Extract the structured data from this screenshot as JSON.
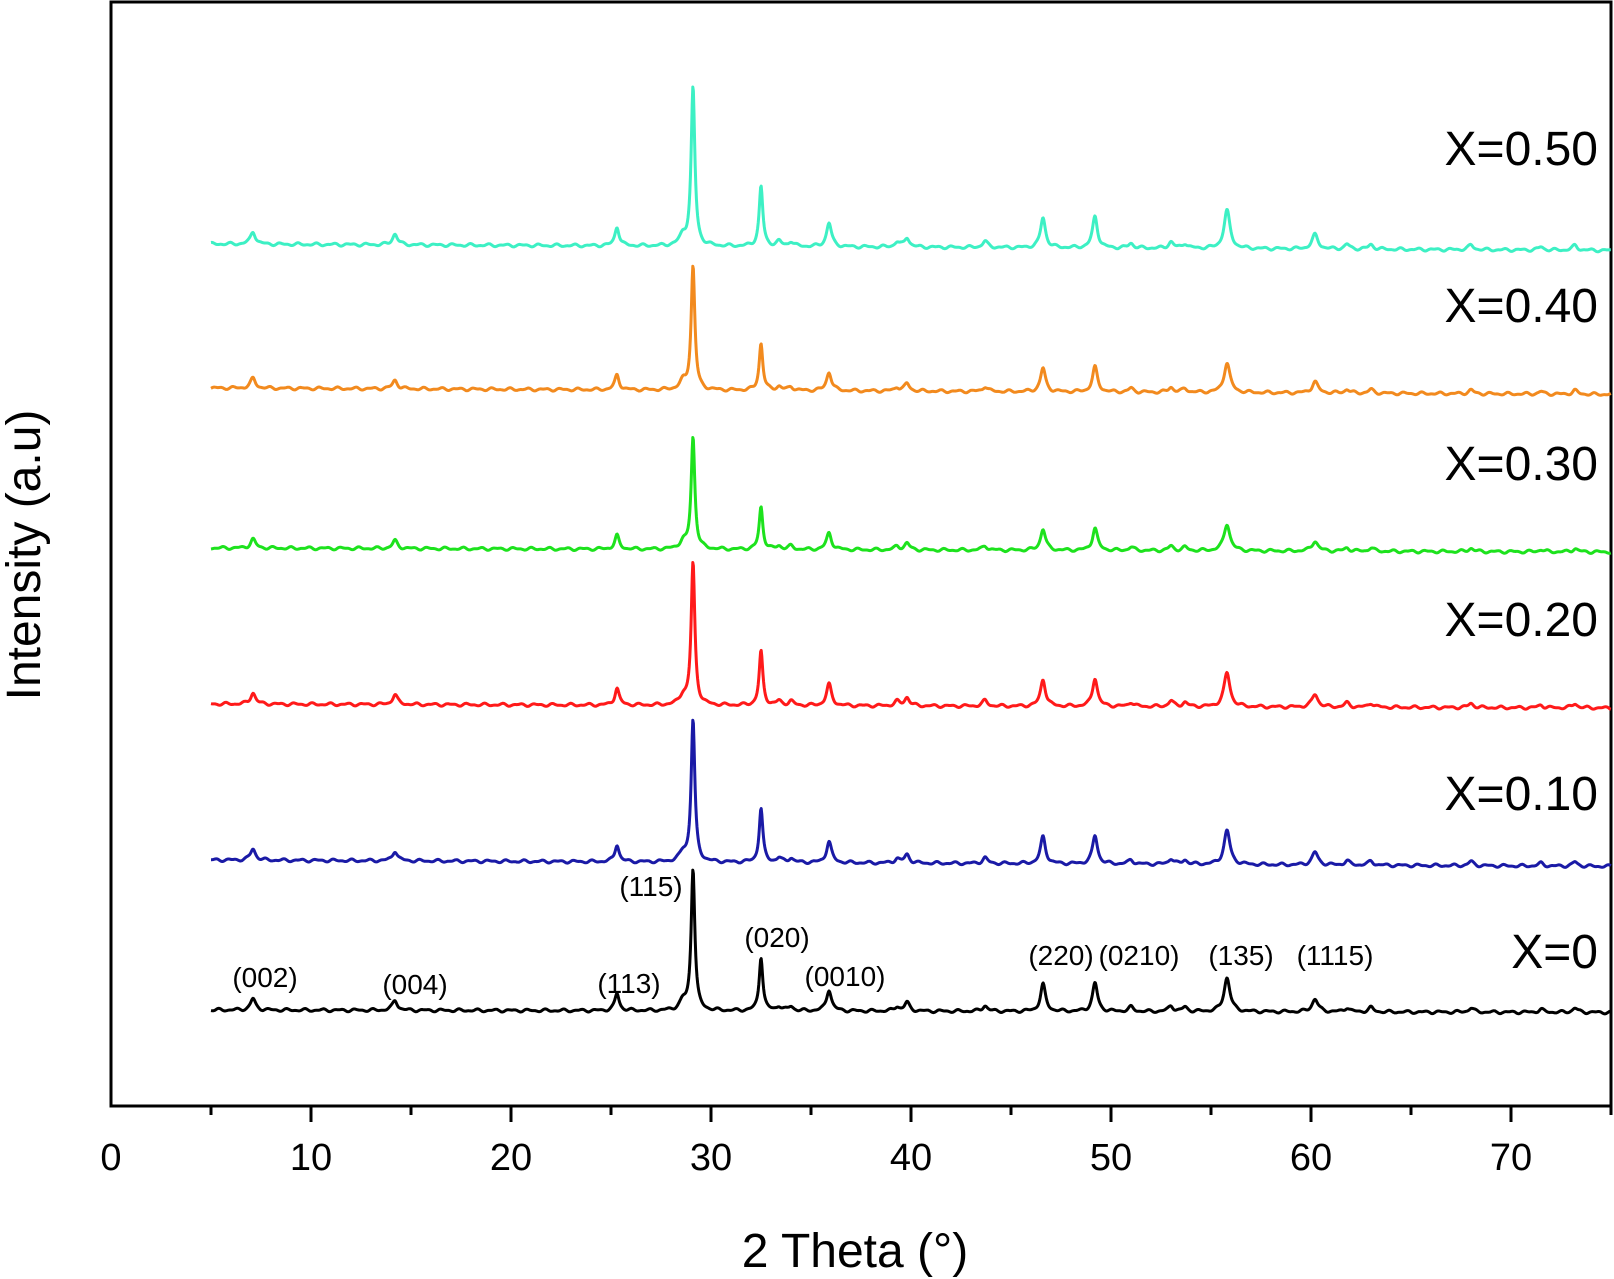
{
  "chart_data": {
    "type": "line",
    "title": "",
    "xlabel": "2 Theta (°)",
    "ylabel": "Intensity (a.u)",
    "xlim": [
      0,
      75
    ],
    "xticks": [
      0,
      10,
      20,
      30,
      40,
      50,
      60,
      70
    ],
    "grid": false,
    "legend": "labels-right-of-traces",
    "peaks": [
      {
        "x": 7.1,
        "h": 8,
        "w": 0.15
      },
      {
        "x": 14.2,
        "h": 7,
        "w": 0.15
      },
      {
        "x": 25.3,
        "h": 12,
        "w": 0.13
      },
      {
        "x": 28.6,
        "h": 6,
        "w": 0.2
      },
      {
        "x": 29.1,
        "h": 100,
        "w": 0.11
      },
      {
        "x": 32.5,
        "h": 38,
        "w": 0.11
      },
      {
        "x": 33.4,
        "h": 3,
        "w": 0.15
      },
      {
        "x": 34.0,
        "h": 3,
        "w": 0.15
      },
      {
        "x": 35.9,
        "h": 15,
        "w": 0.15
      },
      {
        "x": 39.3,
        "h": 3,
        "w": 0.15
      },
      {
        "x": 39.8,
        "h": 6,
        "w": 0.15
      },
      {
        "x": 43.7,
        "h": 4,
        "w": 0.15
      },
      {
        "x": 46.6,
        "h": 19,
        "w": 0.15
      },
      {
        "x": 49.2,
        "h": 20,
        "w": 0.15
      },
      {
        "x": 51.0,
        "h": 3,
        "w": 0.15
      },
      {
        "x": 53.0,
        "h": 4,
        "w": 0.15
      },
      {
        "x": 53.7,
        "h": 3,
        "w": 0.15
      },
      {
        "x": 55.8,
        "h": 24,
        "w": 0.18
      },
      {
        "x": 60.2,
        "h": 9,
        "w": 0.18
      },
      {
        "x": 61.8,
        "h": 3,
        "w": 0.15
      },
      {
        "x": 63.0,
        "h": 3,
        "w": 0.15
      },
      {
        "x": 68.0,
        "h": 3,
        "w": 0.15
      },
      {
        "x": 71.5,
        "h": 2,
        "w": 0.15
      },
      {
        "x": 73.2,
        "h": 3,
        "w": 0.15
      }
    ],
    "series": [
      {
        "name": "X=0",
        "color": "#000000",
        "baseline": 0,
        "drift": -0.6,
        "max": 35.5
      },
      {
        "name": "X=0.10",
        "color": "#1a1aa6",
        "baseline": 37.5,
        "drift": -1.6,
        "max": 35.5
      },
      {
        "name": "X=0.20",
        "color": "#ff1a1a",
        "baseline": 76.5,
        "drift": -1.0,
        "max": 35.5
      },
      {
        "name": "X=0.30",
        "color": "#1de21d",
        "baseline": 115.5,
        "drift": -1.0,
        "max": 28.0
      },
      {
        "name": "X=0.40",
        "color": "#f28a1e",
        "baseline": 155.5,
        "drift": -1.6,
        "max": 31.0
      },
      {
        "name": "X=0.50",
        "color": "#3df0c4",
        "baseline": 191.5,
        "drift": -1.6,
        "max": 39.5
      }
    ],
    "peak_labels": [
      {
        "text": "(002)",
        "x": 7.7
      },
      {
        "text": "(004)",
        "x": 15.2
      },
      {
        "text": "(113)",
        "x": 25.9
      },
      {
        "text": "(115)",
        "x": 27.0
      },
      {
        "text": "(020)",
        "x": 33.3
      },
      {
        "text": "(0010)",
        "x": 36.7
      },
      {
        "text": "(220)",
        "x": 47.5
      },
      {
        "text": "(0210)",
        "x": 51.4
      },
      {
        "text": "(135)",
        "x": 56.5
      },
      {
        "text": "(1115)",
        "x": 61.2
      }
    ]
  }
}
